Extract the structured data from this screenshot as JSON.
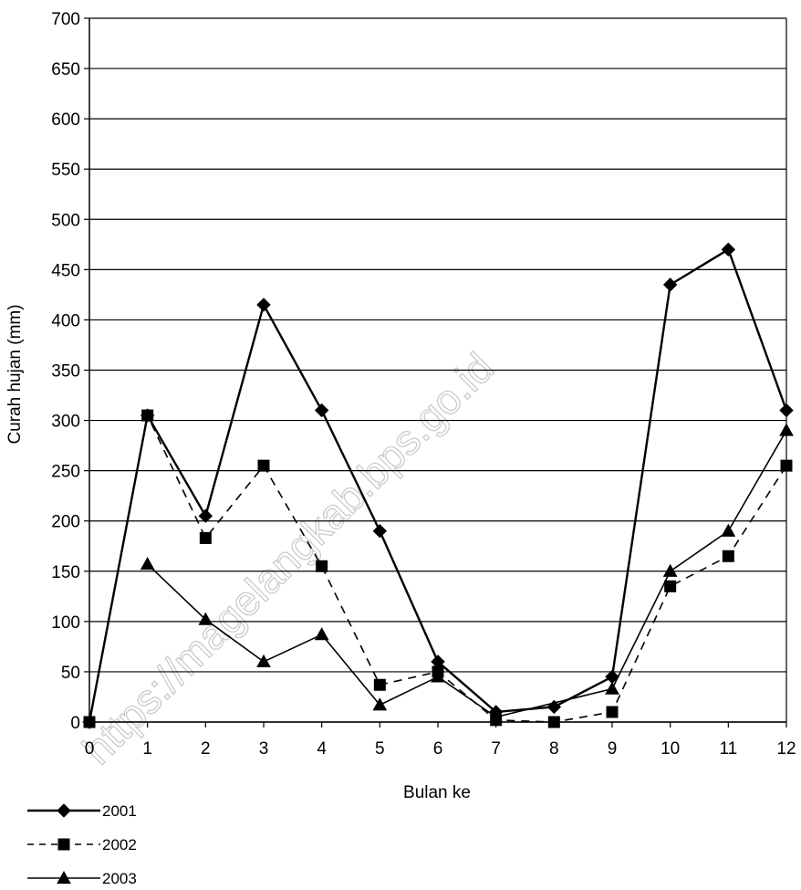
{
  "watermark": "https://magelangkab.bps.go.id",
  "chart_data": {
    "type": "line",
    "title": "",
    "xlabel": "Bulan ke",
    "ylabel": "Curah hujan (mm)",
    "x": [
      0,
      1,
      2,
      3,
      4,
      5,
      6,
      7,
      8,
      9,
      10,
      11,
      12
    ],
    "xlim": [
      0,
      12
    ],
    "ylim": [
      0,
      700
    ],
    "y_ticks": [
      0,
      50,
      100,
      150,
      200,
      250,
      300,
      350,
      400,
      450,
      500,
      550,
      600,
      650,
      700
    ],
    "grid": "horizontal",
    "legend_position": "bottom-left",
    "series": [
      {
        "name": "2001",
        "marker": "diamond",
        "line": "solid",
        "color": "#000000",
        "values": [
          0,
          305,
          205,
          415,
          310,
          190,
          60,
          10,
          15,
          45,
          435,
          470,
          310
        ]
      },
      {
        "name": "2002",
        "marker": "square",
        "line": "dashed",
        "color": "#000000",
        "values": [
          0,
          305,
          183,
          255,
          155,
          37,
          50,
          2,
          0,
          10,
          135,
          165,
          255
        ]
      },
      {
        "name": "2003",
        "marker": "triangle",
        "line": "solid",
        "color": "#000000",
        "values": [
          null,
          157,
          102,
          60,
          87,
          17,
          45,
          5,
          null,
          33,
          150,
          190,
          290
        ]
      }
    ]
  }
}
